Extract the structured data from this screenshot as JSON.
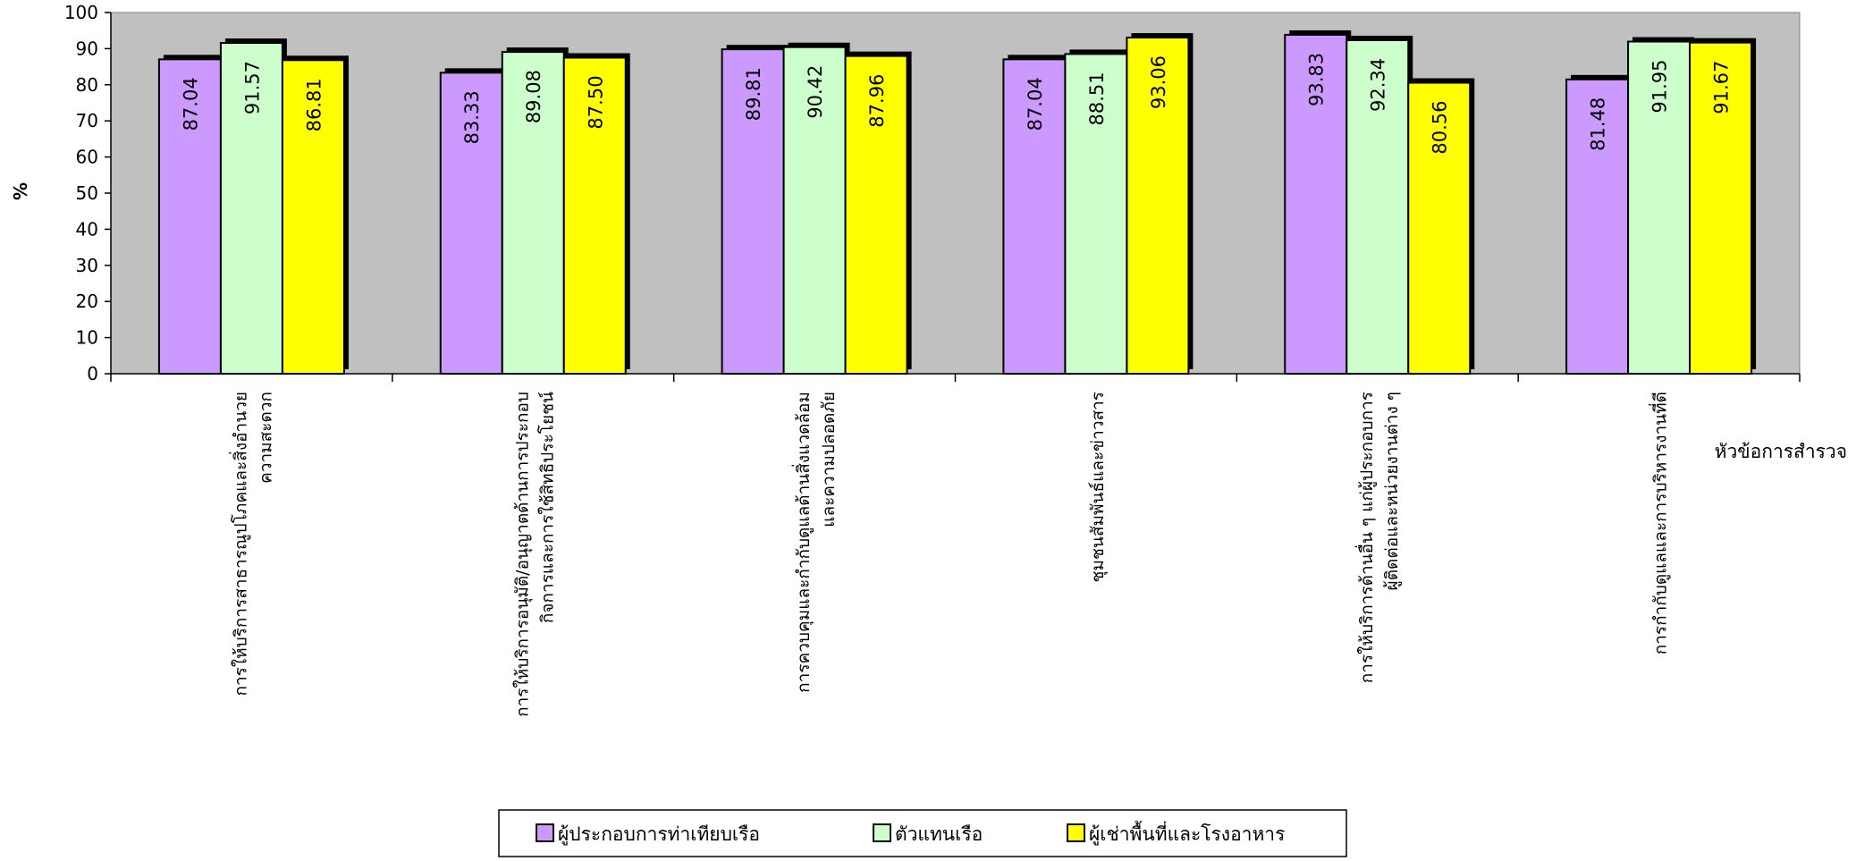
{
  "chart_data": {
    "type": "bar",
    "ylabel": "%",
    "xlabel": "หัวข้อการสำรวจ",
    "ylim": [
      0,
      100
    ],
    "yticks": [
      0,
      10,
      20,
      30,
      40,
      50,
      60,
      70,
      80,
      90,
      100
    ],
    "grid": false,
    "legend_position": "bottom",
    "categories": [
      [
        "การให้บริการสาธารณูปโภคและสิ่งอำนวย",
        "ความสะดวก"
      ],
      [
        "การให้บริการอนุมัติ/อนุญาตด้านการประกอบ",
        "กิจการและการใช้สิทธิประโยชน์"
      ],
      [
        "การควบคุมและกำกับดูแลด้านสิ่งแวดล้อม",
        "และความปลอดภัย"
      ],
      [
        "ชุมชนสัมพันธ์และข่าวสาร"
      ],
      [
        "การให้บริการด้านอื่น ๆ แก่ผู้ประกอบการ",
        "ผู้ติดต่อและหน่วยงานต่าง ๆ"
      ],
      [
        "การกำกับดูแลและการบริหารงานที่ดี"
      ]
    ],
    "series": [
      {
        "name": "ผู้ประกอบการท่าเทียบเรือ",
        "color": "#cc99ff",
        "values": [
          87.04,
          83.33,
          89.81,
          87.04,
          93.83,
          81.48
        ],
        "labels": [
          "87.04",
          "83.33",
          "89.81",
          "87.04",
          "93.83",
          "81.48"
        ]
      },
      {
        "name": "ตัวแทนเรือ",
        "color": "#ccffcc",
        "values": [
          91.57,
          89.08,
          90.42,
          88.51,
          92.34,
          91.95
        ],
        "labels": [
          "91.57",
          "89.08",
          "90.42",
          "88.51",
          "92.34",
          "91.95"
        ]
      },
      {
        "name": "ผู้เช่าพื้นที่และโรงอาหาร",
        "color": "#ffff00",
        "values": [
          86.81,
          87.5,
          87.96,
          93.06,
          80.56,
          91.67
        ],
        "labels": [
          "86.81",
          "87.50",
          "87.96",
          "93.06",
          "80.56",
          "91.67"
        ]
      }
    ],
    "plot_background": "#c0c0c0"
  }
}
